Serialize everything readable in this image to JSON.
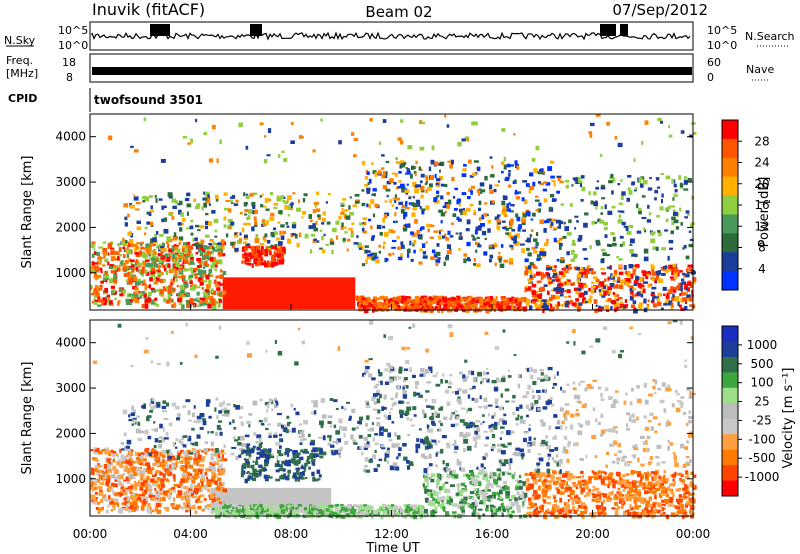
{
  "header": {
    "station": "Inuvik (fitACF)",
    "beam": "Beam 02",
    "date": "07/Sep/2012"
  },
  "strips": {
    "nsky_label": "N.Sky",
    "nsky_ticks": [
      "10^5",
      "10^0"
    ],
    "nsearch_label": "N.Search",
    "nsearch_ticks": [
      "10^5",
      "10^0"
    ],
    "freq_label_1": "Freq.",
    "freq_label_2": "[MHz]",
    "freq_ticks": [
      "18",
      "8"
    ],
    "nave_label": "Nave",
    "nave_ticks": [
      "60",
      "0"
    ],
    "cpid_label": "CPID",
    "cpid_value": "twofsound 3501"
  },
  "colors": {
    "power": [
      "#0033ff",
      "#1b3d9c",
      "#2e6b3a",
      "#4a9a5c",
      "#8fcf3f",
      "#ffb000",
      "#ff8000",
      "#ff5500",
      "#ff0000"
    ],
    "velocity": [
      "#ff0000",
      "#ff4400",
      "#ff7a00",
      "#ffa040",
      "#c8c8c8",
      "#bdbdbd",
      "#9de08a",
      "#3fa53f",
      "#2f6f4a",
      "#1d3f9a",
      "#1a2fc0"
    ]
  },
  "chart_data": [
    {
      "type": "heatmap",
      "title": "",
      "ylabel": "Slant Range [km]",
      "xlabel": "",
      "ylim": [
        180,
        4500
      ],
      "xlim": [
        "00:00",
        "24:00"
      ],
      "y_ticks": [
        "1000",
        "2000",
        "3000",
        "4000"
      ],
      "x_ticks": [
        "00:00",
        "04:00",
        "08:00",
        "12:00",
        "16:00",
        "20:00",
        "00:00"
      ],
      "colorbar_label": "Power [dB]",
      "colorbar_ticks": [
        "28",
        "24",
        "20",
        "16",
        "12",
        "8",
        "4"
      ]
    },
    {
      "type": "heatmap",
      "title": "",
      "ylabel": "Slant Range [km]",
      "xlabel": "Time UT",
      "ylim": [
        180,
        4500
      ],
      "xlim": [
        "00:00",
        "24:00"
      ],
      "y_ticks": [
        "1000",
        "2000",
        "3000",
        "4000"
      ],
      "x_ticks": [
        "00:00",
        "04:00",
        "08:00",
        "12:00",
        "16:00",
        "20:00",
        "00:00"
      ],
      "colorbar_label": "Velocity [m s⁻¹]",
      "colorbar_ticks": [
        "1000",
        "500",
        "100",
        "25",
        "-25",
        "-100",
        "-500",
        "-1000"
      ]
    }
  ]
}
